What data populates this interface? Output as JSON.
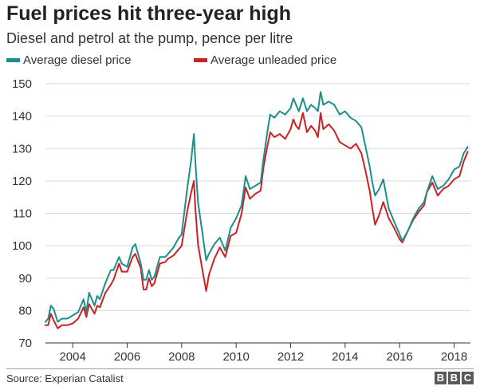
{
  "header": {
    "title": "Fuel prices hit three-year high",
    "subtitle": "Diesel and petrol at the pump, pence per litre"
  },
  "legend": {
    "diesel_label": "Average diesel price",
    "petrol_label": "Average unleaded price"
  },
  "colors": {
    "diesel": "#1b8f8a",
    "petrol": "#cf1f25",
    "grid": "#d9d9d9",
    "axis": "#333333"
  },
  "footer": {
    "source": "Source: Experian Catalist",
    "brand": [
      "B",
      "B",
      "C"
    ]
  },
  "chart_data": {
    "type": "line",
    "title": "Fuel prices hit three-year high",
    "xlabel": "",
    "ylabel": "pence per litre",
    "xlim": [
      2003,
      2018.6
    ],
    "ylim": [
      70,
      150
    ],
    "y_ticks": [
      70,
      80,
      90,
      100,
      110,
      120,
      130,
      140,
      150
    ],
    "x_ticks": [
      {
        "value": 2004,
        "label": "2004"
      },
      {
        "value": 2006,
        "label": "2006"
      },
      {
        "value": 2008,
        "label": "2008"
      },
      {
        "value": 2010,
        "label": "2010"
      },
      {
        "value": 2012,
        "label": "2012"
      },
      {
        "value": 2014,
        "label": "2014"
      },
      {
        "value": 2016,
        "label": "2016"
      },
      {
        "value": 2018,
        "label": "2018"
      }
    ],
    "grid": "horizontal",
    "series": [
      {
        "name": "Average diesel price",
        "color": "#1b8f8a",
        "x": [
          2003.0,
          2003.1,
          2003.2,
          2003.3,
          2003.45,
          2003.6,
          2003.8,
          2004.0,
          2004.2,
          2004.4,
          2004.5,
          2004.6,
          2004.8,
          2004.9,
          2005.0,
          2005.2,
          2005.4,
          2005.5,
          2005.7,
          2005.8,
          2006.0,
          2006.2,
          2006.3,
          2006.5,
          2006.6,
          2006.7,
          2006.8,
          2006.9,
          2007.0,
          2007.2,
          2007.4,
          2007.5,
          2007.7,
          2007.9,
          2008.0,
          2008.2,
          2008.35,
          2008.45,
          2008.5,
          2008.6,
          2008.75,
          2008.9,
          2009.0,
          2009.2,
          2009.4,
          2009.6,
          2009.8,
          2010.0,
          2010.2,
          2010.35,
          2010.5,
          2010.7,
          2010.9,
          2011.0,
          2011.15,
          2011.25,
          2011.4,
          2011.6,
          2011.8,
          2012.0,
          2012.1,
          2012.2,
          2012.3,
          2012.45,
          2012.6,
          2012.75,
          2012.9,
          2013.0,
          2013.1,
          2013.2,
          2013.4,
          2013.6,
          2013.8,
          2014.0,
          2014.2,
          2014.4,
          2014.6,
          2014.75,
          2014.9,
          2015.0,
          2015.1,
          2015.25,
          2015.4,
          2015.6,
          2015.8,
          2016.0,
          2016.1,
          2016.3,
          2016.5,
          2016.7,
          2016.9,
          2017.0,
          2017.2,
          2017.4,
          2017.6,
          2017.8,
          2018.0,
          2018.2,
          2018.35,
          2018.5
        ],
        "values": [
          76.5,
          77.5,
          81.5,
          80.5,
          76.5,
          77.5,
          77.5,
          78.5,
          79.5,
          83.5,
          79.5,
          85.5,
          81.5,
          84.5,
          83.5,
          88.5,
          92.5,
          92.5,
          96.5,
          94.5,
          93.5,
          99.5,
          100.5,
          94.5,
          89.5,
          89.5,
          92.5,
          89.5,
          90.5,
          96.5,
          96.5,
          97.5,
          99.5,
          102.5,
          103.5,
          117.5,
          126.5,
          134.5,
          126.5,
          113.5,
          104.5,
          95.5,
          97.5,
          100.5,
          102.5,
          98.5,
          105.5,
          108.5,
          112.5,
          121.5,
          117.5,
          118.5,
          119.5,
          126.5,
          135.5,
          140.5,
          139.5,
          141.5,
          140.5,
          142.5,
          145.5,
          143.5,
          141.5,
          145.5,
          141.5,
          143.5,
          142.5,
          141.5,
          147.5,
          143.5,
          144.5,
          143.5,
          140.5,
          141.5,
          139.5,
          138.5,
          136.5,
          130.5,
          124.5,
          119.5,
          115.5,
          117.5,
          120.5,
          111.5,
          107.5,
          103.5,
          101.5,
          104.5,
          108.5,
          111.5,
          113.5,
          116.5,
          121.5,
          117.5,
          118.5,
          120.5,
          123.5,
          124.5,
          128.5,
          130.5
        ]
      },
      {
        "name": "Average unleaded price",
        "color": "#cf1f25",
        "x": [
          2003.0,
          2003.1,
          2003.2,
          2003.3,
          2003.45,
          2003.6,
          2003.8,
          2004.0,
          2004.2,
          2004.4,
          2004.5,
          2004.6,
          2004.8,
          2004.9,
          2005.0,
          2005.2,
          2005.4,
          2005.5,
          2005.7,
          2005.8,
          2006.0,
          2006.2,
          2006.3,
          2006.5,
          2006.6,
          2006.7,
          2006.8,
          2006.9,
          2007.0,
          2007.2,
          2007.4,
          2007.5,
          2007.7,
          2007.9,
          2008.0,
          2008.2,
          2008.35,
          2008.45,
          2008.5,
          2008.6,
          2008.75,
          2008.9,
          2009.0,
          2009.2,
          2009.4,
          2009.6,
          2009.8,
          2010.0,
          2010.2,
          2010.35,
          2010.5,
          2010.7,
          2010.9,
          2011.0,
          2011.15,
          2011.25,
          2011.4,
          2011.6,
          2011.8,
          2012.0,
          2012.1,
          2012.2,
          2012.3,
          2012.45,
          2012.6,
          2012.75,
          2012.9,
          2013.0,
          2013.1,
          2013.2,
          2013.4,
          2013.6,
          2013.8,
          2014.0,
          2014.2,
          2014.4,
          2014.6,
          2014.75,
          2014.9,
          2015.0,
          2015.1,
          2015.25,
          2015.4,
          2015.6,
          2015.8,
          2016.0,
          2016.1,
          2016.3,
          2016.5,
          2016.7,
          2016.9,
          2017.0,
          2017.2,
          2017.4,
          2017.6,
          2017.8,
          2018.0,
          2018.2,
          2018.35,
          2018.5
        ],
        "values": [
          75.5,
          75.5,
          79.0,
          77.0,
          74.5,
          75.5,
          75.5,
          76.0,
          77.5,
          81.0,
          78.0,
          82.0,
          79.0,
          81.5,
          81.0,
          85.5,
          88.0,
          89.5,
          94.5,
          92.0,
          92.0,
          96.5,
          97.5,
          93.0,
          86.5,
          86.5,
          90.0,
          87.5,
          88.5,
          94.5,
          95.0,
          96.0,
          97.0,
          99.0,
          100.0,
          110.5,
          116.5,
          120.0,
          112.0,
          100.5,
          93.0,
          86.0,
          91.0,
          96.0,
          99.5,
          96.5,
          103.0,
          104.0,
          110.0,
          118.0,
          114.5,
          116.0,
          117.0,
          124.0,
          131.0,
          135.0,
          133.5,
          134.5,
          133.0,
          136.0,
          139.0,
          137.0,
          136.0,
          141.0,
          135.0,
          137.0,
          135.5,
          133.5,
          141.0,
          136.0,
          137.5,
          135.5,
          132.0,
          131.0,
          130.0,
          131.5,
          128.5,
          123.0,
          117.0,
          111.5,
          106.5,
          109.5,
          113.5,
          108.5,
          105.5,
          102.0,
          101.0,
          104.5,
          108.0,
          110.5,
          112.5,
          116.5,
          119.5,
          115.5,
          117.5,
          118.5,
          120.5,
          121.5,
          126.0,
          129.0
        ]
      }
    ]
  }
}
